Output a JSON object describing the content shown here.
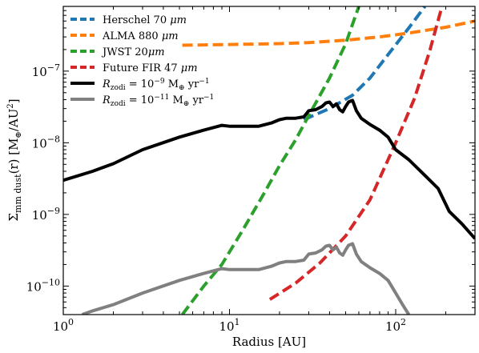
{
  "chart_data": {
    "type": "line",
    "xlabel": "Radius [AU]",
    "ylabel": "Σmm dust(r) [M⊕/AU²]",
    "ylabel_parts": {
      "sigma": "Σ",
      "sub": "mm dust",
      "paren": "(r) [M",
      "earth": "⊕",
      "per": "/AU",
      "sq": "2",
      "close": "]"
    },
    "x_scale": "log",
    "y_scale": "log",
    "xlim": [
      1,
      300
    ],
    "ylim": [
      4e-11,
      8e-07
    ],
    "x_ticks": [
      {
        "value": 1,
        "base": "10",
        "exp": "0"
      },
      {
        "value": 10,
        "base": "10",
        "exp": "1"
      },
      {
        "value": 100,
        "base": "10",
        "exp": "2"
      }
    ],
    "y_ticks": [
      {
        "value": 1e-10,
        "base": "10",
        "exp": "−10"
      },
      {
        "value": 1e-09,
        "base": "10",
        "exp": "−9"
      },
      {
        "value": 1e-08,
        "base": "10",
        "exp": "−8"
      },
      {
        "value": 1e-07,
        "base": "10",
        "exp": "−7"
      }
    ],
    "legend_position": "top-left",
    "series": [
      {
        "name": "Herschel 70 μm",
        "legend": {
          "text": "Herschel 70 ",
          "unit": "μm"
        },
        "color": "#1f77b4",
        "style": "dashed",
        "x": [
          28,
          40,
          55,
          70,
          90,
          120,
          150
        ],
        "y": [
          2.1e-08,
          3e-08,
          4.6e-08,
          8e-08,
          1.7e-07,
          4e-07,
          8e-07
        ]
      },
      {
        "name": "ALMA 880 μm",
        "legend": {
          "text": "ALMA 880 ",
          "unit": "μm"
        },
        "color": "#ff7f0e",
        "style": "dashed",
        "x": [
          5.2,
          10,
          20,
          30,
          50,
          80,
          120,
          200,
          300
        ],
        "y": [
          2.3e-07,
          2.35e-07,
          2.42e-07,
          2.5e-07,
          2.7e-07,
          3e-07,
          3.4e-07,
          4.1e-07,
          5e-07
        ]
      },
      {
        "name": "JWST 20μm",
        "legend": {
          "text": "JWST 20",
          "unit": "μm"
        },
        "color": "#2ca02c",
        "style": "dashed",
        "x": [
          5.2,
          7,
          9,
          12,
          16,
          20,
          25,
          30,
          40,
          50,
          60
        ],
        "y": [
          4e-11,
          1e-10,
          2e-10,
          6e-10,
          1.9e-09,
          4.8e-09,
          1.1e-08,
          2.4e-08,
          8e-08,
          2.4e-07,
          8e-07
        ]
      },
      {
        "name": "Future FIR 47 μm",
        "legend": {
          "text": "Future FIR 47 ",
          "unit": "μm"
        },
        "color": "#d62728",
        "style": "dashed",
        "x": [
          17.5,
          25,
          35,
          50,
          70,
          100,
          130,
          160,
          190
        ],
        "y": [
          6.5e-11,
          1.1e-10,
          2.1e-10,
          5e-10,
          1.6e-09,
          1e-08,
          4.2e-08,
          1.9e-07,
          8e-07
        ]
      },
      {
        "name": "Rzodi = 10^-9 M⊕ yr^-1",
        "legend": {
          "prefix": "R",
          "sub": "zodi",
          "mid": " = 10",
          "exp": "−9",
          "unit": " M",
          "earth": "⊕",
          "rate": " yr",
          "rateexp": "−1"
        },
        "color": "#000000",
        "style": "solid",
        "x": [
          1,
          1.5,
          2,
          3,
          5,
          7,
          9,
          10,
          12,
          15,
          18,
          20,
          22,
          25,
          28,
          30,
          33,
          36,
          38,
          40,
          42,
          44,
          46,
          48,
          50,
          52,
          55,
          58,
          62,
          70,
          80,
          90,
          100,
          120,
          150,
          180,
          210,
          250,
          300
        ],
        "y": [
          3e-09,
          4e-09,
          5.1e-09,
          8e-09,
          1.2e-08,
          1.5e-08,
          1.75e-08,
          1.7e-08,
          1.7e-08,
          1.7e-08,
          1.9e-08,
          2.1e-08,
          2.2e-08,
          2.2e-08,
          2.3e-08,
          2.8e-08,
          2.9e-08,
          3.2e-08,
          3.6e-08,
          3.7e-08,
          3.2e-08,
          3.5e-08,
          2.9e-08,
          2.7e-08,
          3.2e-08,
          3.7e-08,
          3.9e-08,
          2.8e-08,
          2.2e-08,
          1.8e-08,
          1.5e-08,
          1.2e-08,
          8e-09,
          5.8e-09,
          3.5e-09,
          2.3e-09,
          1.1e-09,
          7.4e-10,
          4.6e-10
        ]
      },
      {
        "name": "Rzodi = 10^-11 M⊕ yr^-1",
        "legend": {
          "prefix": "R",
          "sub": "zodi",
          "mid": " = 10",
          "exp": "−11",
          "unit": " M",
          "earth": "⊕",
          "rate": " yr",
          "rateexp": "−1"
        },
        "color": "#808080",
        "style": "solid",
        "x": [
          1.3,
          1.5,
          2,
          3,
          5,
          7,
          9,
          10,
          12,
          15,
          18,
          20,
          22,
          25,
          28,
          30,
          33,
          36,
          38,
          40,
          42,
          44,
          46,
          48,
          50,
          52,
          55,
          58,
          62,
          70,
          80,
          90,
          100,
          110,
          120
        ],
        "y": [
          4e-11,
          4.5e-11,
          5.5e-11,
          8e-11,
          1.2e-10,
          1.5e-10,
          1.75e-10,
          1.7e-10,
          1.7e-10,
          1.7e-10,
          1.9e-10,
          2.1e-10,
          2.2e-10,
          2.2e-10,
          2.3e-10,
          2.8e-10,
          2.9e-10,
          3.2e-10,
          3.6e-10,
          3.7e-10,
          3.2e-10,
          3.5e-10,
          2.9e-10,
          2.7e-10,
          3.2e-10,
          3.7e-10,
          3.9e-10,
          2.8e-10,
          2.2e-10,
          1.8e-10,
          1.5e-10,
          1.2e-10,
          8e-11,
          5.5e-11,
          4e-11
        ]
      }
    ]
  }
}
